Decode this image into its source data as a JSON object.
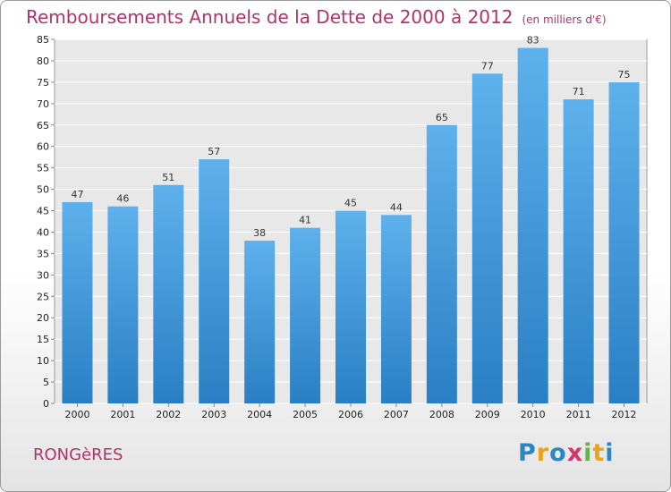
{
  "title": "Remboursements Annuels de la Dette de 2000 à 2012",
  "subtitle": "(en milliers d'€)",
  "town": "RONGèRES",
  "logo": {
    "letters": [
      "P",
      "r",
      "o",
      "x",
      "i",
      "t",
      "i"
    ],
    "colors": [
      "#2e86c1",
      "#e8a317",
      "#2e86c1",
      "#d6336c",
      "#6ab04c",
      "#e8a317",
      "#2e86c1"
    ]
  },
  "chart_data": {
    "type": "bar",
    "title": "Remboursements Annuels de la Dette de 2000 à 2012",
    "subtitle": "(en milliers d'€)",
    "xlabel": "",
    "ylabel": "",
    "categories": [
      "2000",
      "2001",
      "2002",
      "2003",
      "2004",
      "2005",
      "2006",
      "2007",
      "2008",
      "2009",
      "2010",
      "2011",
      "2012"
    ],
    "values": [
      47,
      46,
      51,
      57,
      38,
      41,
      45,
      44,
      65,
      77,
      83,
      71,
      75
    ],
    "ylim": [
      0,
      85
    ],
    "yticks": [
      0,
      5,
      10,
      15,
      20,
      25,
      30,
      35,
      40,
      45,
      50,
      55,
      60,
      65,
      70,
      75,
      80,
      85
    ],
    "grid": true,
    "bar_color": "#4a9ee0",
    "data_labels": true
  }
}
